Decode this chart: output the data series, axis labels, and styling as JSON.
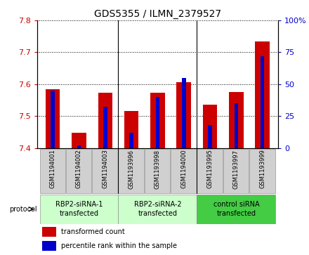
{
  "title": "GDS5355 / ILMN_2379527",
  "samples": [
    "GSM1194001",
    "GSM1194002",
    "GSM1194003",
    "GSM1193996",
    "GSM1193998",
    "GSM1194000",
    "GSM1193995",
    "GSM1193997",
    "GSM1193999"
  ],
  "red_values": [
    7.585,
    7.447,
    7.572,
    7.515,
    7.572,
    7.607,
    7.535,
    7.576,
    7.735
  ],
  "blue_values": [
    45,
    2,
    32,
    12,
    40,
    55,
    18,
    35,
    72
  ],
  "ylim_left": [
    7.4,
    7.8
  ],
  "ylim_right": [
    0,
    100
  ],
  "yticks_left": [
    7.4,
    7.5,
    7.6,
    7.7,
    7.8
  ],
  "yticks_right": [
    0,
    25,
    50,
    75,
    100
  ],
  "red_color": "#cc0000",
  "blue_color": "#0000cc",
  "bar_bottom": 7.4,
  "group_labels": [
    "RBP2-siRNA-1\ntransfected",
    "RBP2-siRNA-2\ntransfected",
    "control siRNA\ntransfected"
  ],
  "group_colors": [
    "#ccffcc",
    "#ccffcc",
    "#44cc44"
  ],
  "protocol_label": "protocol",
  "legend_red": "transformed count",
  "legend_blue": "percentile rank within the sample",
  "bar_width": 0.55,
  "blue_bar_width": 0.15
}
